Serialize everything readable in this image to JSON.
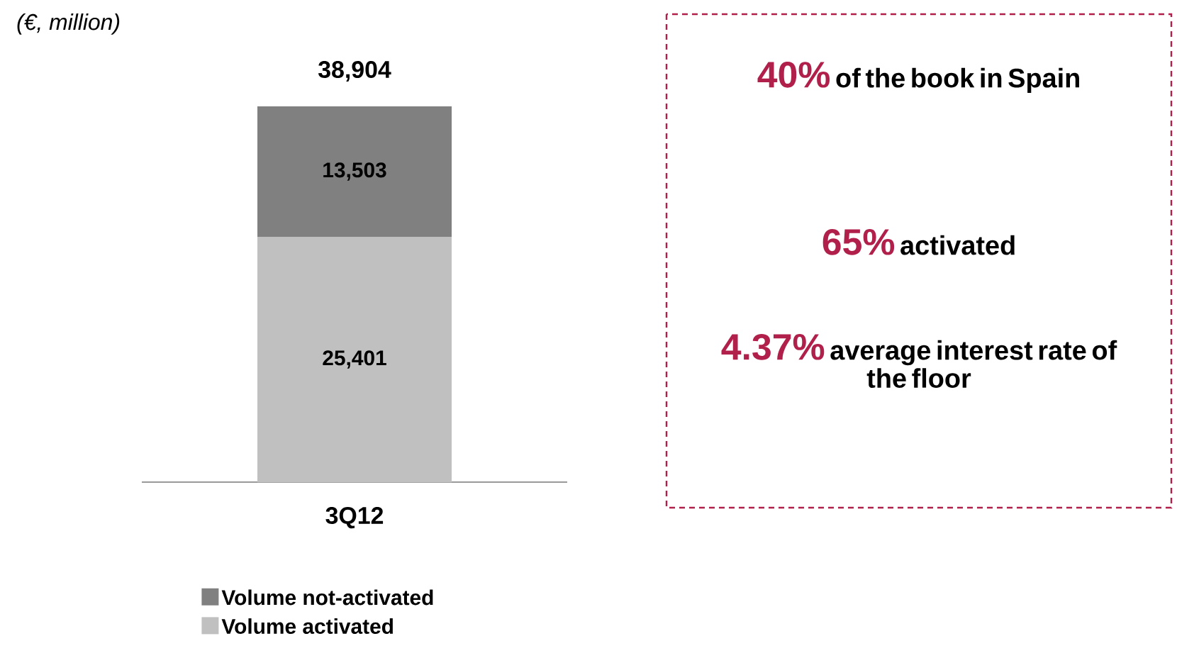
{
  "chart_data": {
    "type": "bar",
    "stacked": true,
    "categories": [
      "3Q12"
    ],
    "series": [
      {
        "name": "Volume activated",
        "color": "#c0c0c0",
        "values": [
          25401
        ],
        "value_labels": [
          "25,401"
        ]
      },
      {
        "name": "Volume not-activated",
        "color": "#808080",
        "values": [
          13503
        ],
        "value_labels": [
          "13,503"
        ]
      }
    ],
    "totals": [
      "38,904"
    ],
    "tick_labels": "x",
    "legend": "bottom",
    "annotations": [
      "(€, million)",
      "40%",
      "of the book in Spain",
      "65%",
      "activated",
      "4.37%",
      "average interest rate of the floor"
    ]
  }
}
